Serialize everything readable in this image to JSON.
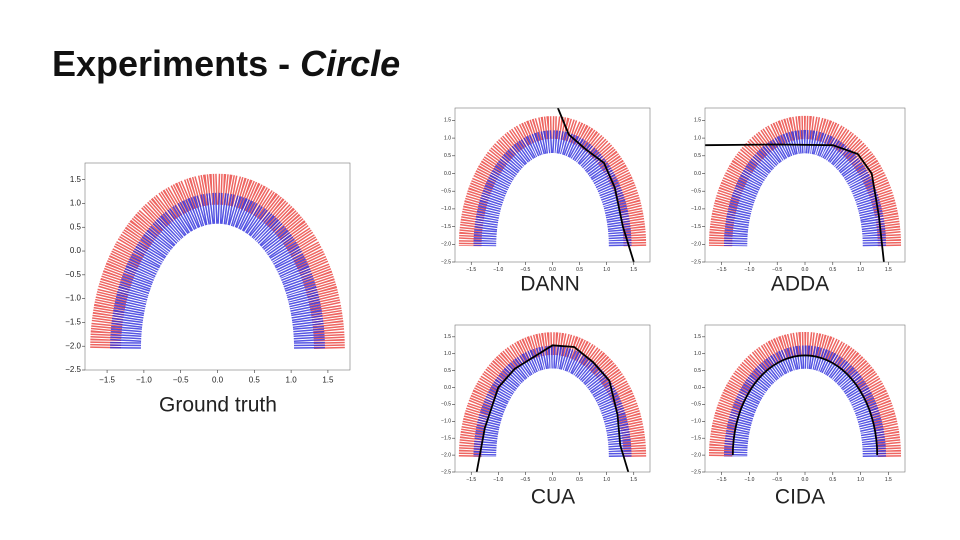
{
  "title": {
    "text": "Experiments -",
    "emphasis": "Circle"
  },
  "panels": [
    {
      "caption": "Ground truth",
      "xlim": [
        -1.8,
        1.8
      ],
      "ylim": [
        -2.5,
        1.85
      ],
      "xticks": [
        {
          "value": -1.5,
          "label": "−1.5"
        },
        {
          "value": -1,
          "label": "−1.0"
        },
        {
          "value": -0.5,
          "label": "−0.5"
        },
        {
          "value": 0,
          "label": "0.0"
        },
        0.5,
        {
          "value": 1,
          "label": "1.0"
        },
        1.5
      ],
      "yticks": [
        1.5,
        {
          "value": 1,
          "label": "1.0"
        },
        0.5,
        {
          "value": 0,
          "label": "0.0"
        },
        {
          "value": -0.5,
          "label": "−0.5"
        },
        {
          "value": -1,
          "label": "−1.0"
        },
        {
          "value": -1.5,
          "label": "−1.5"
        },
        {
          "value": -2,
          "label": "−2.0"
        },
        {
          "value": -2.5,
          "label": "−2.5"
        }
      ]
    },
    {
      "caption": "DANN",
      "xlim": [
        -1.8,
        1.8
      ],
      "ylim": [
        -2.5,
        1.85
      ],
      "xticks": [
        {
          "value": -1.5,
          "label": "−1.5"
        },
        {
          "value": -1,
          "label": "−1.0"
        },
        {
          "value": -0.5,
          "label": "−0.5"
        },
        {
          "value": 0,
          "label": "0.0"
        },
        0.5,
        {
          "value": 1,
          "label": "1.0"
        },
        1.5
      ],
      "yticks": [
        1.5,
        {
          "value": 1,
          "label": "1.0"
        },
        0.5,
        {
          "value": 0,
          "label": "0.0"
        },
        {
          "value": -0.5,
          "label": "−0.5"
        },
        {
          "value": -1,
          "label": "−1.0"
        },
        {
          "value": -1.5,
          "label": "−1.5"
        },
        {
          "value": -2,
          "label": "−2.0"
        },
        {
          "value": -2.5,
          "label": "−2.5"
        }
      ]
    },
    {
      "caption": "ADDA",
      "xlim": [
        -1.8,
        1.8
      ],
      "ylim": [
        -2.5,
        1.85
      ],
      "xticks": [
        {
          "value": -1.5,
          "label": "−1.5"
        },
        {
          "value": -1,
          "label": "−1.0"
        },
        {
          "value": -0.5,
          "label": "−0.5"
        },
        {
          "value": 0,
          "label": "0.0"
        },
        0.5,
        {
          "value": 1,
          "label": "1.0"
        },
        1.5
      ],
      "yticks": [
        1.5,
        {
          "value": 1,
          "label": "1.0"
        },
        0.5,
        {
          "value": 0,
          "label": "0.0"
        },
        {
          "value": -0.5,
          "label": "−0.5"
        },
        {
          "value": -1,
          "label": "−1.0"
        },
        {
          "value": -1.5,
          "label": "−1.5"
        },
        {
          "value": -2,
          "label": "−2.0"
        },
        {
          "value": -2.5,
          "label": "−2.5"
        }
      ]
    },
    {
      "caption": "CUA",
      "xlim": [
        -1.8,
        1.8
      ],
      "ylim": [
        -2.5,
        1.85
      ],
      "xticks": [
        {
          "value": -1.5,
          "label": "−1.5"
        },
        {
          "value": -1,
          "label": "−1.0"
        },
        {
          "value": -0.5,
          "label": "−0.5"
        },
        {
          "value": 0,
          "label": "0.0"
        },
        0.5,
        {
          "value": 1,
          "label": "1.0"
        },
        1.5
      ],
      "yticks": [
        1.5,
        {
          "value": 1,
          "label": "1.0"
        },
        0.5,
        {
          "value": 0,
          "label": "0.0"
        },
        {
          "value": -0.5,
          "label": "−0.5"
        },
        {
          "value": -1,
          "label": "−1.0"
        },
        {
          "value": -1.5,
          "label": "−1.5"
        },
        {
          "value": -2,
          "label": "−2.0"
        },
        {
          "value": -2.5,
          "label": "−2.5"
        }
      ]
    },
    {
      "caption": "CIDA",
      "xlim": [
        -1.8,
        1.8
      ],
      "ylim": [
        -2.5,
        1.85
      ],
      "xticks": [
        {
          "value": -1.5,
          "label": "−1.5"
        },
        {
          "value": -1,
          "label": "−1.0"
        },
        {
          "value": -0.5,
          "label": "−0.5"
        },
        {
          "value": 0,
          "label": "0.0"
        },
        0.5,
        {
          "value": 1,
          "label": "1.0"
        },
        1.5
      ],
      "yticks": [
        1.5,
        {
          "value": 1,
          "label": "1.0"
        },
        0.5,
        {
          "value": 0,
          "label": "0.0"
        },
        {
          "value": -0.5,
          "label": "−0.5"
        },
        {
          "value": -1,
          "label": "−1.0"
        },
        {
          "value": -1.5,
          "label": "−1.5"
        },
        {
          "value": -2,
          "label": "−2.0"
        },
        {
          "value": -2.5,
          "label": "−2.5"
        }
      ]
    }
  ]
}
